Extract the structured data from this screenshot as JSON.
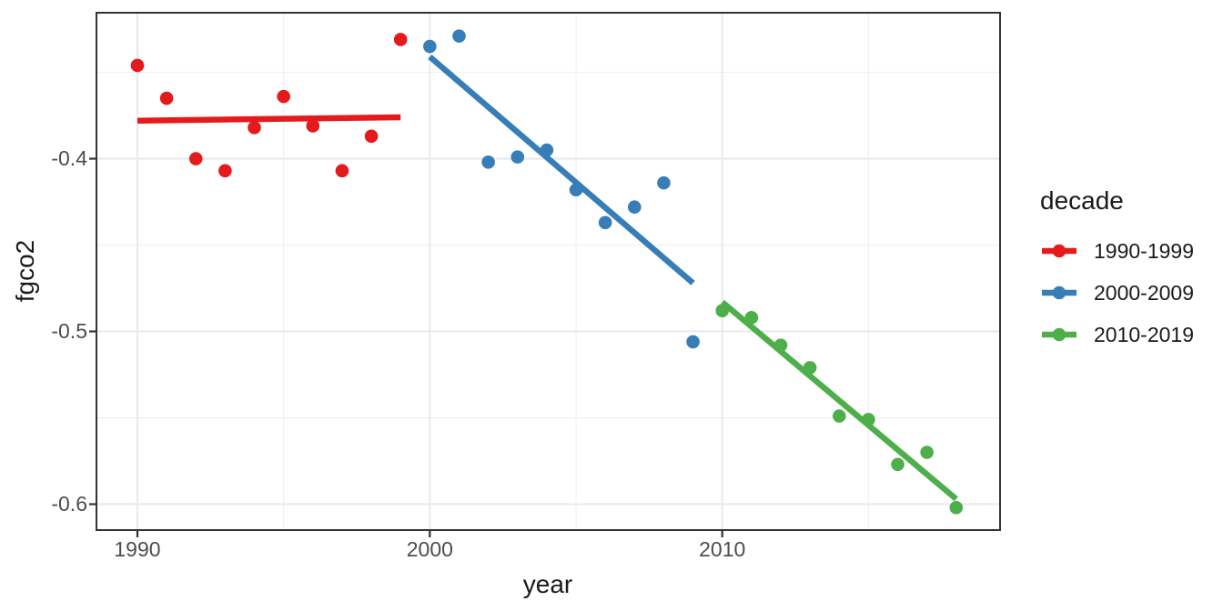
{
  "chart_data": {
    "type": "scatter",
    "title": "",
    "xlabel": "year",
    "ylabel": "fgco2",
    "grid": "on",
    "x_axis": {
      "range": [
        1988.6,
        2019.5
      ],
      "ticks": [
        {
          "value": 1990,
          "label": "1990"
        },
        {
          "value": 2000,
          "label": "2000"
        },
        {
          "value": 2010,
          "label": "2010"
        }
      ],
      "minor_ticks": [
        1995,
        2005,
        2015
      ]
    },
    "y_axis": {
      "range": [
        -0.615,
        -0.3155
      ],
      "ticks": [
        {
          "value": -0.4,
          "label": "-0.4"
        },
        {
          "value": -0.5,
          "label": "-0.5"
        },
        {
          "value": -0.6,
          "label": "-0.6"
        }
      ],
      "minor_ticks": [
        -0.35,
        -0.45,
        -0.55
      ]
    },
    "legend": {
      "title": "decade",
      "position": "right"
    },
    "series": [
      {
        "name": "1990-1999",
        "color": "#E41A1C",
        "points": [
          [
            1990,
            -0.346
          ],
          [
            1991,
            -0.365
          ],
          [
            1992,
            -0.4
          ],
          [
            1993,
            -0.407
          ],
          [
            1994,
            -0.382
          ],
          [
            1995,
            -0.364
          ],
          [
            1996,
            -0.381
          ],
          [
            1997,
            -0.407
          ],
          [
            1998,
            -0.387
          ],
          [
            1999,
            -0.331
          ]
        ],
        "trend": [
          [
            1990,
            -0.378
          ],
          [
            1999,
            -0.376
          ]
        ]
      },
      {
        "name": "2000-2009",
        "color": "#377EB8",
        "points": [
          [
            2000,
            -0.335
          ],
          [
            2001,
            -0.329
          ],
          [
            2002,
            -0.402
          ],
          [
            2003,
            -0.399
          ],
          [
            2004,
            -0.395
          ],
          [
            2005,
            -0.418
          ],
          [
            2006,
            -0.437
          ],
          [
            2007,
            -0.428
          ],
          [
            2008,
            -0.414
          ],
          [
            2009,
            -0.506
          ]
        ],
        "trend": [
          [
            2000,
            -0.341
          ],
          [
            2009,
            -0.472
          ]
        ]
      },
      {
        "name": "2010-2019",
        "color": "#4DAF4A",
        "points": [
          [
            2010,
            -0.488
          ],
          [
            2011,
            -0.492
          ],
          [
            2012,
            -0.508
          ],
          [
            2013,
            -0.521
          ],
          [
            2014,
            -0.549
          ],
          [
            2015,
            -0.551
          ],
          [
            2016,
            -0.577
          ],
          [
            2017,
            -0.57
          ],
          [
            2018,
            -0.602
          ]
        ],
        "trend": [
          [
            2010,
            -0.483
          ],
          [
            2018,
            -0.597
          ]
        ]
      }
    ],
    "style": {
      "background": "#FFFFFF",
      "grid_major_color": "#EBEBEB",
      "grid_minor_color": "#F0F0F0",
      "panel_border_color": "#333333",
      "tick_mark_color": "#333333",
      "tick_label_color": "#4D4D4D",
      "point_radius": 7.3,
      "trend_line_width": 6.5
    }
  }
}
